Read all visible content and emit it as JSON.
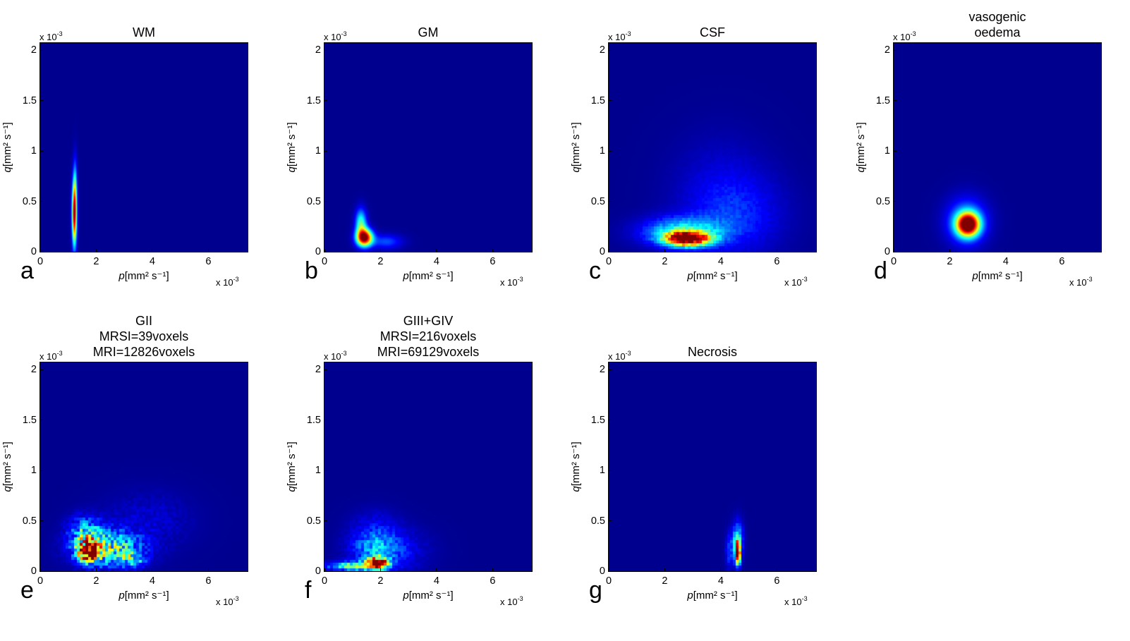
{
  "chart_data": [
    {
      "type": "heatmap",
      "panel_letter": "a",
      "title": [
        "WM"
      ],
      "xlabel_symbol": "p",
      "xlabel_unit": "[mm² s⁻¹]",
      "ylabel_symbol": "q",
      "ylabel_unit": "[mm² s⁻¹]",
      "x_exponent": "x 10",
      "x_exponent_power": "-3",
      "y_exponent": "x 10",
      "y_exponent_power": "-3",
      "xlim": [
        0,
        0.0074
      ],
      "ylim": [
        0,
        0.00207
      ],
      "xticks": [
        0,
        0.002,
        0.004,
        0.006
      ],
      "xtick_labels": [
        "0",
        "2",
        "4",
        "6"
      ],
      "yticks": [
        0,
        0.0005,
        0.001,
        0.0015,
        0.002
      ],
      "ytick_labels": [
        "0",
        "0.5",
        "1",
        "1.5",
        "2"
      ],
      "blobs": [
        {
          "x": 0.00122,
          "y": 0.00038,
          "sx": 6e-05,
          "sy": 0.00022,
          "amp": 1.0
        },
        {
          "x": 0.00125,
          "y": 0.0007,
          "sx": 5e-05,
          "sy": 0.0002,
          "amp": 0.18
        }
      ],
      "noise": 0
    },
    {
      "type": "heatmap",
      "panel_letter": "b",
      "title": [
        "GM"
      ],
      "xlabel_symbol": "p",
      "xlabel_unit": "[mm² s⁻¹]",
      "ylabel_symbol": "q",
      "ylabel_unit": "[mm² s⁻¹]",
      "x_exponent": "x 10",
      "x_exponent_power": "-3",
      "y_exponent": "x 10",
      "y_exponent_power": "-3",
      "xlim": [
        0,
        0.0074
      ],
      "ylim": [
        0,
        0.00207
      ],
      "xticks": [
        0,
        0.002,
        0.004,
        0.006
      ],
      "xtick_labels": [
        "0",
        "2",
        "4",
        "6"
      ],
      "yticks": [
        0,
        0.0005,
        0.001,
        0.0015,
        0.002
      ],
      "ytick_labels": [
        "0",
        "0.5",
        "1",
        "1.5",
        "2"
      ],
      "blobs": [
        {
          "x": 0.00143,
          "y": 0.00014,
          "sx": 0.0002,
          "sy": 6e-05,
          "amp": 1.0
        },
        {
          "x": 0.0013,
          "y": 0.00028,
          "sx": 0.00014,
          "sy": 0.0001,
          "amp": 0.45
        },
        {
          "x": 0.0022,
          "y": 0.0001,
          "sx": 0.0004,
          "sy": 5e-05,
          "amp": 0.2
        }
      ],
      "noise": 0
    },
    {
      "type": "heatmap",
      "panel_letter": "c",
      "title": [
        "CSF"
      ],
      "xlabel_symbol": "p",
      "xlabel_unit": "[mm² s⁻¹]",
      "ylabel_symbol": "q",
      "ylabel_unit": "[mm² s⁻¹]",
      "x_exponent": "x 10",
      "x_exponent_power": "-3",
      "y_exponent": "x 10",
      "y_exponent_power": "-3",
      "xlim": [
        0,
        0.0074
      ],
      "ylim": [
        0,
        0.00207
      ],
      "xticks": [
        0,
        0.002,
        0.004,
        0.006
      ],
      "xtick_labels": [
        "0",
        "2",
        "4",
        "6"
      ],
      "yticks": [
        0,
        0.0005,
        0.001,
        0.0015,
        0.002
      ],
      "ytick_labels": [
        "0",
        "0.5",
        "1",
        "1.5",
        "2"
      ],
      "blobs": [
        {
          "x": 0.0028,
          "y": 0.00013,
          "sx": 0.00055,
          "sy": 5e-05,
          "amp": 1.0
        },
        {
          "x": 0.0026,
          "y": 0.0002,
          "sx": 0.001,
          "sy": 0.0001,
          "amp": 0.35
        },
        {
          "x": 0.0045,
          "y": 0.00035,
          "sx": 0.0012,
          "sy": 0.00028,
          "amp": 0.14
        },
        {
          "x": 0.004,
          "y": 0.0007,
          "sx": 0.0012,
          "sy": 0.00035,
          "amp": 0.06
        }
      ],
      "noise": 0.15
    },
    {
      "type": "heatmap",
      "panel_letter": "d",
      "title": [
        "vasogenic",
        "oedema"
      ],
      "xlabel_symbol": "p",
      "xlabel_unit": "[mm² s⁻¹]",
      "ylabel_symbol": "q",
      "ylabel_unit": "[mm² s⁻¹]",
      "x_exponent": "x 10",
      "x_exponent_power": "-3",
      "y_exponent": "x 10",
      "y_exponent_power": "-3",
      "xlim": [
        0,
        0.0074
      ],
      "ylim": [
        0,
        0.00207
      ],
      "xticks": [
        0,
        0.002,
        0.004,
        0.006
      ],
      "xtick_labels": [
        "0",
        "2",
        "4",
        "6"
      ],
      "yticks": [
        0,
        0.0005,
        0.001,
        0.0015,
        0.002
      ],
      "ytick_labels": [
        "0",
        "0.5",
        "1",
        "1.5",
        "2"
      ],
      "blobs": [
        {
          "x": 0.00265,
          "y": 0.00027,
          "sx": 0.00028,
          "sy": 8e-05,
          "amp": 1.0
        },
        {
          "x": 0.0026,
          "y": 0.0003,
          "sx": 0.0005,
          "sy": 0.00016,
          "amp": 0.3
        }
      ],
      "noise": 0
    },
    {
      "type": "heatmap",
      "panel_letter": "e",
      "title": [
        "GII",
        "MRSI=39voxels",
        "MRI=12826voxels"
      ],
      "xlabel_symbol": "p",
      "xlabel_unit": "[mm² s⁻¹]",
      "ylabel_symbol": "q",
      "ylabel_unit": "[mm² s⁻¹]",
      "x_exponent": "x 10",
      "x_exponent_power": "-3",
      "y_exponent": "x 10",
      "y_exponent_power": "-3",
      "xlim": [
        0,
        0.0074
      ],
      "ylim": [
        0,
        0.00207
      ],
      "xticks": [
        0,
        0.002,
        0.004,
        0.006
      ],
      "xtick_labels": [
        "0",
        "2",
        "4",
        "6"
      ],
      "yticks": [
        0,
        0.0005,
        0.001,
        0.0015,
        0.002
      ],
      "ytick_labels": [
        "0",
        "0.5",
        "1",
        "1.5",
        "2"
      ],
      "blobs": [
        {
          "x": 0.0017,
          "y": 0.0002,
          "sx": 0.00025,
          "sy": 7e-05,
          "amp": 0.9
        },
        {
          "x": 0.0024,
          "y": 0.00022,
          "sx": 0.0008,
          "sy": 0.00012,
          "amp": 0.45
        },
        {
          "x": 0.0016,
          "y": 0.0004,
          "sx": 0.0004,
          "sy": 0.0001,
          "amp": 0.3
        },
        {
          "x": 0.0033,
          "y": 0.00012,
          "sx": 0.0003,
          "sy": 5e-05,
          "amp": 0.3
        },
        {
          "x": 0.0038,
          "y": 0.0005,
          "sx": 0.0011,
          "sy": 0.0002,
          "amp": 0.07
        }
      ],
      "noise": 0.55
    },
    {
      "type": "heatmap",
      "panel_letter": "f",
      "title": [
        "GIII+GIV",
        "MRSI=216voxels",
        "MRI=69129voxels"
      ],
      "xlabel_symbol": "p",
      "xlabel_unit": "[mm² s⁻¹]",
      "ylabel_symbol": "q",
      "ylabel_unit": "[mm² s⁻¹]",
      "x_exponent": "x 10",
      "x_exponent_power": "-3",
      "y_exponent": "x 10",
      "y_exponent_power": "-3",
      "xlim": [
        0,
        0.0074
      ],
      "ylim": [
        0,
        0.00207
      ],
      "xticks": [
        0,
        0.002,
        0.004,
        0.006
      ],
      "xtick_labels": [
        "0",
        "2",
        "4",
        "6"
      ],
      "yticks": [
        0,
        0.0005,
        0.001,
        0.0015,
        0.002
      ],
      "ytick_labels": [
        "0",
        "0.5",
        "1",
        "1.5",
        "2"
      ],
      "blobs": [
        {
          "x": 0.0019,
          "y": 8e-05,
          "sx": 0.00025,
          "sy": 4e-05,
          "amp": 1.0
        },
        {
          "x": 0.0011,
          "y": 5e-05,
          "sx": 0.0007,
          "sy": 3e-05,
          "amp": 0.45
        },
        {
          "x": 0.0018,
          "y": 0.00022,
          "sx": 0.0006,
          "sy": 0.00012,
          "amp": 0.25
        },
        {
          "x": 0.0026,
          "y": 0.0002,
          "sx": 0.0008,
          "sy": 0.00015,
          "amp": 0.1
        },
        {
          "x": 0.0018,
          "y": 0.00045,
          "sx": 0.0006,
          "sy": 0.00012,
          "amp": 0.08
        }
      ],
      "noise": 0.35
    },
    {
      "type": "heatmap",
      "panel_letter": "g",
      "title": [
        "Necrosis"
      ],
      "xlabel_symbol": "p",
      "xlabel_unit": "[mm² s⁻¹]",
      "ylabel_symbol": "q",
      "ylabel_unit": "[mm² s⁻¹]",
      "x_exponent": "x 10",
      "x_exponent_power": "-3",
      "y_exponent": "x 10",
      "y_exponent_power": "-3",
      "xlim": [
        0,
        0.0074
      ],
      "ylim": [
        0,
        0.00207
      ],
      "xticks": [
        0,
        0.002,
        0.004,
        0.006
      ],
      "xtick_labels": [
        "0",
        "2",
        "4",
        "6"
      ],
      "yticks": [
        0,
        0.0005,
        0.001,
        0.0015,
        0.002
      ],
      "ytick_labels": [
        "0",
        "0.5",
        "1",
        "1.5",
        "2"
      ],
      "blobs": [
        {
          "x": 0.0046,
          "y": 0.00018,
          "sx": 7e-05,
          "sy": 8e-05,
          "amp": 1.0
        },
        {
          "x": 0.0046,
          "y": 0.00032,
          "sx": 0.00013,
          "sy": 0.00012,
          "amp": 0.35
        },
        {
          "x": 0.0043,
          "y": 0.0002,
          "sx": 9e-05,
          "sy": 0.00012,
          "amp": 0.2
        }
      ],
      "noise": 0.25
    }
  ],
  "colormap": [
    "#00008f",
    "#0000ff",
    "#0080ff",
    "#00ffff",
    "#80ff80",
    "#ffff00",
    "#ff8000",
    "#ff0000",
    "#800000"
  ]
}
